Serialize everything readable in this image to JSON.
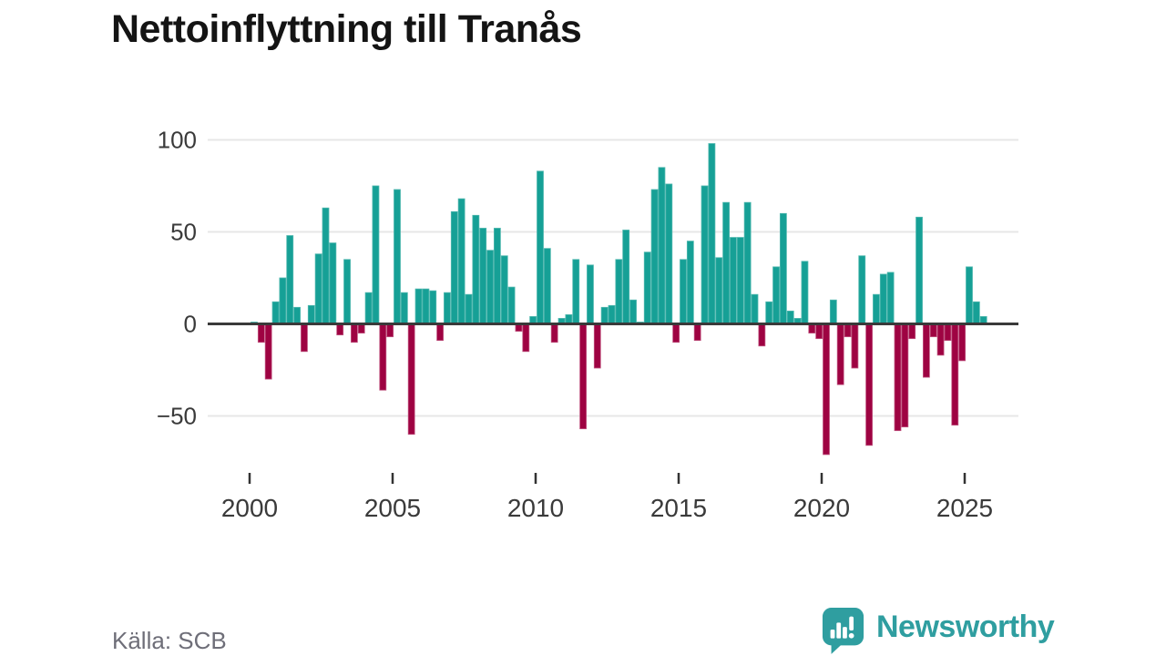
{
  "title": "Nettoinflyttning till Tranås",
  "source": "Källa: SCB",
  "logo": {
    "text": "Newsworthy"
  },
  "colors": {
    "positive": "#16a096",
    "positive_edge": "#4fb7ae",
    "negative": "#9e0342",
    "negative_edge": "#c05580",
    "grid": "#e7e7e7",
    "zero_line": "#3a3a3a",
    "tick": "#333333",
    "tick_label": "#3a3a3a",
    "title": "#141414",
    "source_text": "#6e6e78",
    "logo_teal": "#2f9ea0"
  },
  "y_axis": {
    "ticks": [
      100,
      50,
      0,
      -50
    ],
    "labels": [
      "100",
      "50",
      "0",
      "−50"
    ]
  },
  "x_axis": {
    "labels": [
      "2000",
      "2005",
      "2010",
      "2015",
      "2020",
      "2025"
    ]
  },
  "chart_data": {
    "type": "bar",
    "title": "Nettoinflyttning till Tranås",
    "xlabel": "",
    "ylabel": "",
    "ylim": [
      -75,
      105
    ],
    "grid": "horizontal",
    "legend": "none",
    "unit": "persons (net migration per quarter)",
    "x": [
      "2000Q1",
      "2000Q2",
      "2000Q3",
      "2000Q4",
      "2001Q1",
      "2001Q2",
      "2001Q3",
      "2001Q4",
      "2002Q1",
      "2002Q2",
      "2002Q3",
      "2002Q4",
      "2003Q1",
      "2003Q2",
      "2003Q3",
      "2003Q4",
      "2004Q1",
      "2004Q2",
      "2004Q3",
      "2004Q4",
      "2005Q1",
      "2005Q2",
      "2005Q3",
      "2005Q4",
      "2006Q1",
      "2006Q2",
      "2006Q3",
      "2006Q4",
      "2007Q1",
      "2007Q2",
      "2007Q3",
      "2007Q4",
      "2008Q1",
      "2008Q2",
      "2008Q3",
      "2008Q4",
      "2009Q1",
      "2009Q2",
      "2009Q3",
      "2009Q4",
      "2010Q1",
      "2010Q2",
      "2010Q3",
      "2010Q4",
      "2011Q1",
      "2011Q2",
      "2011Q3",
      "2011Q4",
      "2012Q1",
      "2012Q2",
      "2012Q3",
      "2012Q4",
      "2013Q1",
      "2013Q2",
      "2013Q3",
      "2013Q4",
      "2014Q1",
      "2014Q2",
      "2014Q3",
      "2014Q4",
      "2015Q1",
      "2015Q2",
      "2015Q3",
      "2015Q4",
      "2016Q1",
      "2016Q2",
      "2016Q3",
      "2016Q4",
      "2017Q1",
      "2017Q2",
      "2017Q3",
      "2017Q4",
      "2018Q1",
      "2018Q2",
      "2018Q3",
      "2018Q4",
      "2019Q1",
      "2019Q2",
      "2019Q3",
      "2019Q4",
      "2020Q1",
      "2020Q2",
      "2020Q3",
      "2020Q4",
      "2021Q1",
      "2021Q2",
      "2021Q3",
      "2021Q4",
      "2022Q1",
      "2022Q2",
      "2022Q3",
      "2022Q4",
      "2023Q1",
      "2023Q2",
      "2023Q3",
      "2023Q4",
      "2024Q1",
      "2024Q2",
      "2024Q3",
      "2024Q4",
      "2025Q1",
      "2025Q2",
      "2025Q3"
    ],
    "values": [
      1,
      -10,
      -30,
      12,
      25,
      48,
      9,
      -15,
      10,
      38,
      63,
      44,
      -6,
      35,
      -10,
      -5,
      17,
      75,
      -36,
      -7,
      73,
      17,
      -60,
      19,
      19,
      18,
      -9,
      17,
      61,
      68,
      16,
      59,
      52,
      40,
      52,
      37,
      20,
      -4,
      -15,
      4,
      83,
      41,
      -10,
      3,
      5,
      35,
      -57,
      32,
      -24,
      9,
      10,
      35,
      51,
      13,
      1,
      39,
      73,
      85,
      76,
      -10,
      35,
      45,
      -9,
      75,
      98,
      36,
      66,
      47,
      47,
      66,
      16,
      -12,
      12,
      31,
      60,
      7,
      3,
      34,
      -5,
      -8,
      -71,
      13,
      -33,
      -7,
      -24,
      37,
      -66,
      16,
      27,
      28,
      -58,
      -56,
      -8,
      58,
      -29,
      -7,
      -17,
      -9,
      -55,
      -20,
      31,
      12,
      4
    ]
  }
}
